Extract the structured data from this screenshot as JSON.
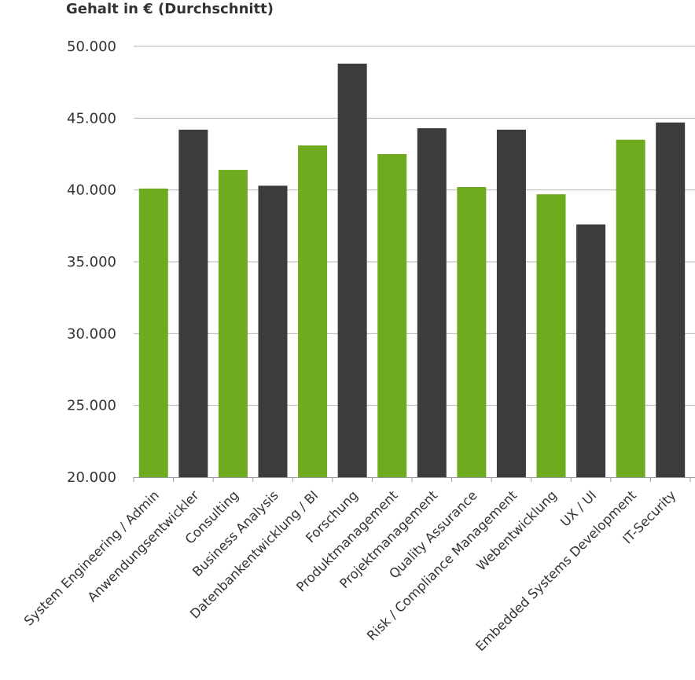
{
  "chart_data": {
    "type": "bar",
    "title": "Gehalt in € (Durchschnitt)",
    "ylim": [
      20000,
      50000
    ],
    "yticks": [
      20000,
      25000,
      30000,
      35000,
      40000,
      45000,
      50000
    ],
    "ytick_labels": [
      "20.000",
      "25.000",
      "30.000",
      "35.000",
      "40.000",
      "45.000",
      "50.000"
    ],
    "grid": true,
    "categories": [
      "System Engineering / Admin",
      "Anwendungsentwickler",
      "Consulting",
      "Business Analysis",
      "Datenbankentwicklung / BI",
      "Forschung",
      "Produktmanagement",
      "Projektmanagement",
      "Quality Assurance",
      "Risk / Compliance Management",
      "Webentwicklung",
      "UX / UI",
      "Embedded Systems Development",
      "IT-Security"
    ],
    "values": [
      40100,
      44200,
      41400,
      40300,
      43100,
      48800,
      42500,
      44300,
      40200,
      44200,
      39700,
      37600,
      43500,
      44700
    ],
    "colors": [
      "#6fab1e",
      "#3c3c3c",
      "#6fab1e",
      "#3c3c3c",
      "#6fab1e",
      "#3c3c3c",
      "#6fab1e",
      "#3c3c3c",
      "#6fab1e",
      "#3c3c3c",
      "#6fab1e",
      "#3c3c3c",
      "#6fab1e",
      "#3c3c3c"
    ]
  }
}
